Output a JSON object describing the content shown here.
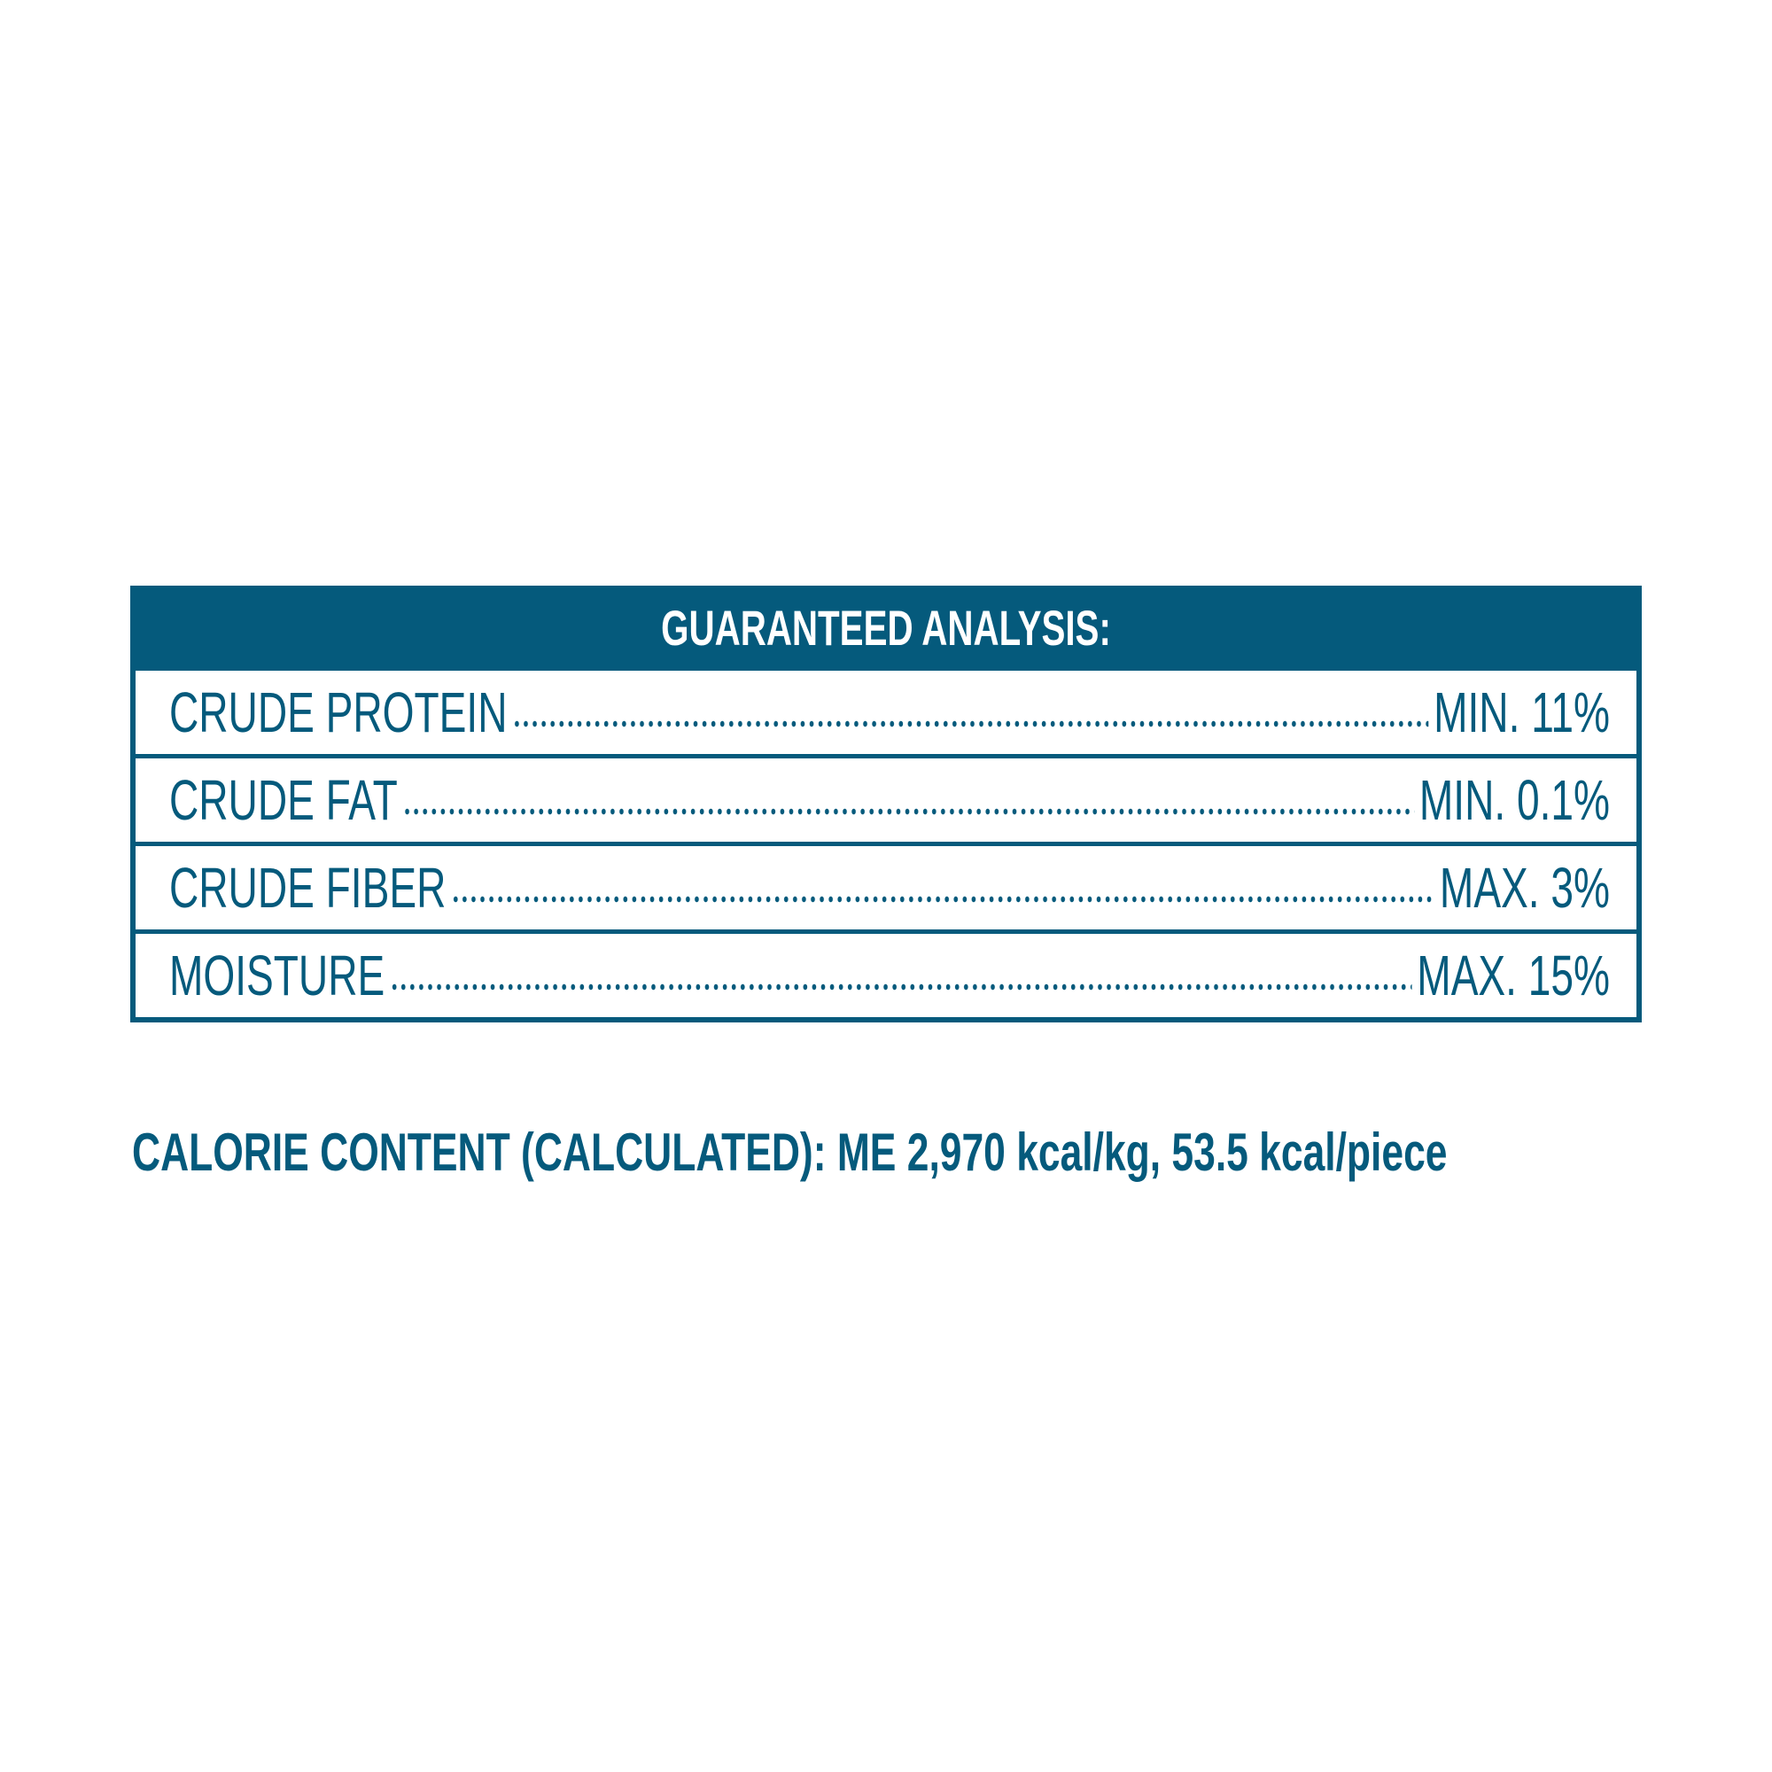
{
  "header": {
    "title": "GUARANTEED ANALYSIS:"
  },
  "table": {
    "rows": [
      [
        "CRUDE PROTEIN",
        "MIN. 11%"
      ],
      [
        "CRUDE FAT",
        "MIN. 0.1%"
      ],
      [
        "CRUDE FIBER",
        "MAX. 3%"
      ],
      [
        "MOISTURE",
        "MAX. 15%"
      ]
    ]
  },
  "footer": {
    "text": "CALORIE CONTENT (CALCULATED): ME 2,970 kcal/kg, 53.5 kcal/piece"
  }
}
